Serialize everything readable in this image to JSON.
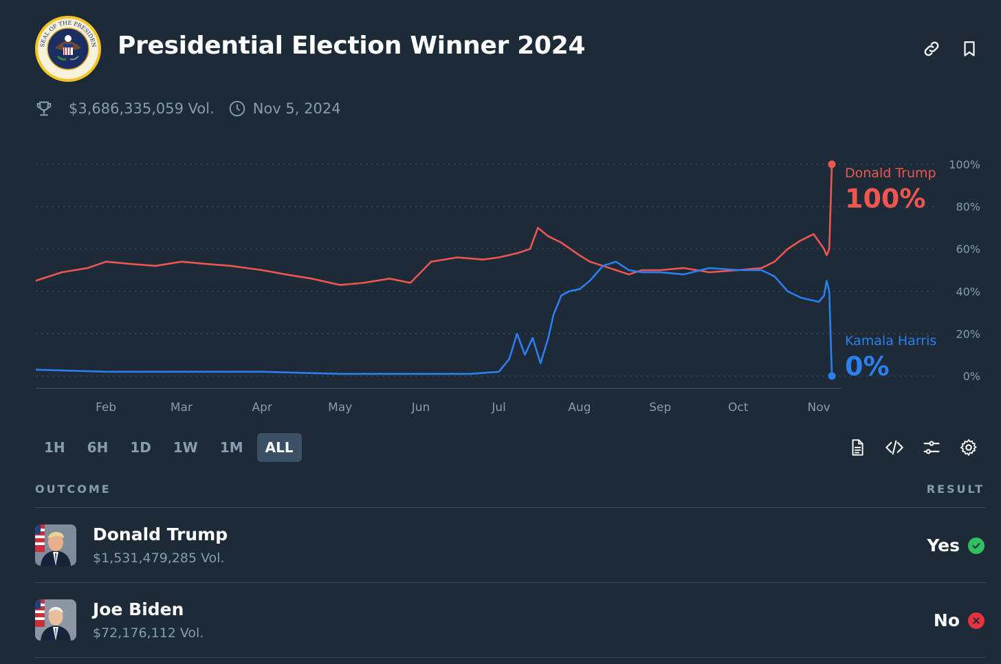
{
  "header": {
    "title": "Presidential Election Winner 2024",
    "seal_text": "SEAL OF THE PRESIDENT OF THE UNITED STATES",
    "icons": [
      "link-icon",
      "bookmark-icon"
    ]
  },
  "meta": {
    "volume": "$3,686,335,059 Vol.",
    "date": "Nov 5, 2024",
    "icons": [
      "trophy-icon",
      "clock-icon"
    ]
  },
  "chart_data": {
    "type": "line",
    "x_labels": [
      "Feb",
      "Mar",
      "Apr",
      "May",
      "Jun",
      "Jul",
      "Aug",
      "Sep",
      "Oct",
      "Nov"
    ],
    "y_ticks": [
      "100%",
      "80%",
      "60%",
      "40%",
      "20%",
      "0%"
    ],
    "ylim": [
      0,
      100
    ],
    "grid": true,
    "series": [
      {
        "name": "Donald Trump",
        "color": "#f0564f",
        "final_label": "100%",
        "x": [
          "Jan 5",
          "Jan 15",
          "Jan 25",
          "Feb 1",
          "Feb 10",
          "Feb 20",
          "Mar 1",
          "Mar 10",
          "Mar 20",
          "Apr 1",
          "Apr 10",
          "Apr 20",
          "May 1",
          "May 10",
          "May 20",
          "May 28",
          "Jun 5",
          "Jun 15",
          "Jun 25",
          "Jul 1",
          "Jul 8",
          "Jul 13",
          "Jul 16",
          "Jul 20",
          "Jul 25",
          "Aug 1",
          "Aug 5",
          "Aug 10",
          "Aug 15",
          "Aug 20",
          "Aug 25",
          "Sep 1",
          "Sep 10",
          "Sep 20",
          "Oct 1",
          "Oct 10",
          "Oct 15",
          "Oct 20",
          "Oct 25",
          "Oct 30",
          "Nov 3",
          "Nov 4",
          "Nov 5",
          "Nov 6"
        ],
        "y": [
          45,
          49,
          51,
          54,
          53,
          52,
          54,
          53,
          52,
          50,
          48,
          46,
          43,
          44,
          46,
          44,
          54,
          56,
          55,
          56,
          58,
          60,
          70,
          66,
          63,
          57,
          54,
          52,
          50,
          48,
          50,
          50,
          51,
          49,
          50,
          51,
          54,
          60,
          64,
          67,
          60,
          57,
          60,
          100
        ]
      },
      {
        "name": "Kamala Harris",
        "color": "#2d7ff0",
        "final_label": "0%",
        "x": [
          "Jan 5",
          "Feb 1",
          "Mar 1",
          "Apr 1",
          "May 1",
          "Jun 1",
          "Jun 20",
          "Jul 1",
          "Jul 5",
          "Jul 8",
          "Jul 11",
          "Jul 14",
          "Jul 17",
          "Jul 20",
          "Jul 22",
          "Jul 25",
          "Jul 28",
          "Aug 1",
          "Aug 5",
          "Aug 10",
          "Aug 15",
          "Aug 20",
          "Aug 25",
          "Sep 1",
          "Sep 10",
          "Sep 20",
          "Oct 1",
          "Oct 10",
          "Oct 15",
          "Oct 20",
          "Oct 25",
          "Nov 1",
          "Nov 3",
          "Nov 4",
          "Nov 5",
          "Nov 6"
        ],
        "y": [
          3,
          2,
          2,
          2,
          1,
          1,
          1,
          2,
          8,
          20,
          10,
          18,
          6,
          18,
          29,
          38,
          40,
          41,
          45,
          52,
          54,
          50,
          49,
          49,
          48,
          51,
          50,
          50,
          47,
          40,
          37,
          35,
          38,
          45,
          40,
          0
        ]
      }
    ]
  },
  "ranges": {
    "items": [
      "1H",
      "6H",
      "1D",
      "1W",
      "1M",
      "ALL"
    ],
    "active": "ALL"
  },
  "tools": [
    "document-icon",
    "code-icon",
    "sliders-icon",
    "gear-icon"
  ],
  "table": {
    "outcome_header": "OUTCOME",
    "result_header": "RESULT",
    "rows": [
      {
        "name": "Donald Trump",
        "volume": "$1,531,479,285 Vol.",
        "result": "Yes",
        "result_color": "#2fbf5d"
      },
      {
        "name": "Joe Biden",
        "volume": "$72,176,112 Vol.",
        "result": "No",
        "result_color": "#e5333f"
      }
    ]
  }
}
